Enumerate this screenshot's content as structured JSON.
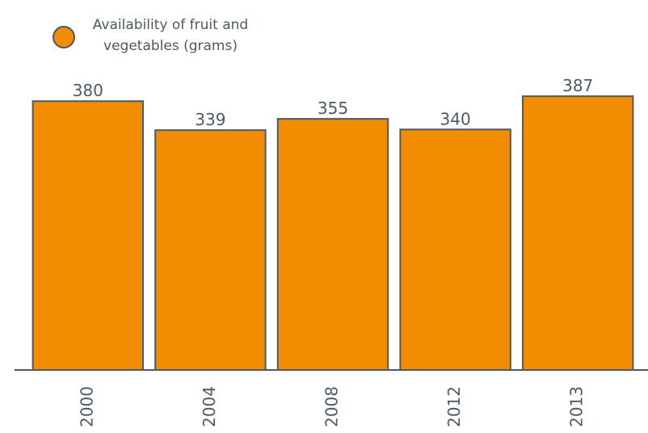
{
  "chart_data": {
    "type": "bar",
    "categories": [
      "2000",
      "2004",
      "2008",
      "2012",
      "2013"
    ],
    "series": [
      {
        "name": "Availability of fruit and vegetables (grams)",
        "color": "#f28c00",
        "values": [
          380,
          339,
          355,
          340,
          387
        ]
      }
    ],
    "ylim": [
      0,
      523
    ]
  }
}
